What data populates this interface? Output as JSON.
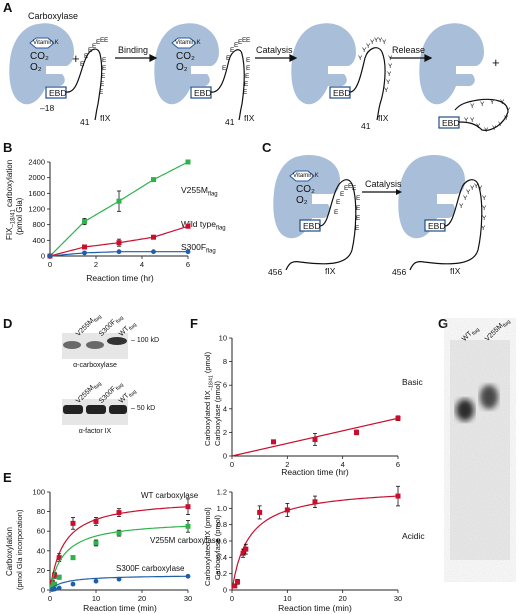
{
  "panels": {
    "A": "A",
    "B": "B",
    "C": "C",
    "D": "D",
    "E": "E",
    "F": "F",
    "G": "G"
  },
  "panelA": {
    "carboxylase": "Carboxylase",
    "vitk": "Vitamin K",
    "co2": "CO₂",
    "o2": "O₂",
    "plus": "+",
    "ebd": "EBD",
    "minus18": "–18",
    "n41": "41",
    "fix": "fIX",
    "binding": "Binding",
    "catalysis": "Catalysis",
    "release": "Release",
    "glu": "E",
    "gla": "Y"
  },
  "panelC": {
    "vitk": "Vitamin K",
    "co2": "CO₂",
    "o2": "O₂",
    "ebd": "EBD",
    "catalysis": "Catalysis",
    "n456": "456",
    "fix": "fIX"
  },
  "panelD": {
    "lanes": [
      "V255M",
      "S300F",
      "WT"
    ],
    "lane_sub": "flag",
    "kd100": "– 100 kD",
    "kd50": "– 50 kD",
    "blot1": "α-carboxylase",
    "blot2": "α-factor IX"
  },
  "panelG": {
    "lanes": [
      "WT",
      "V255M"
    ],
    "lane_sub": "flag",
    "basic": "Basic",
    "acidic": "Acidic"
  },
  "chart_data": [
    {
      "id": "B",
      "type": "line",
      "ylabel_main": "FIX",
      "ylabel_sub": "–18/41",
      "ylabel_rest": " carboxylation",
      "ylabel2": "(pmol Gla)",
      "xlabel": "Reaction time (hr)",
      "xlim": [
        0,
        6
      ],
      "ylim": [
        0,
        2400
      ],
      "xticks": [
        0,
        2,
        4,
        6
      ],
      "yticks": [
        0,
        400,
        800,
        1200,
        1600,
        2000,
        2400
      ],
      "series": [
        {
          "name": "V255M",
          "sub": "flag",
          "color": "#2db34a",
          "x": [
            0,
            1.5,
            3,
            4.5,
            6
          ],
          "y": [
            0,
            880,
            1400,
            1950,
            2400
          ],
          "err": [
            0,
            80,
            260,
            40,
            40
          ]
        },
        {
          "name": "Wild type",
          "sub": "flag",
          "color": "#c8102e",
          "x": [
            0,
            1.5,
            3,
            4.5,
            6
          ],
          "y": [
            0,
            230,
            340,
            480,
            760
          ],
          "err": [
            0,
            30,
            90,
            30,
            30
          ]
        },
        {
          "name": "S300F",
          "sub": "flag",
          "color": "#1f5fa8",
          "x": [
            0,
            1.5,
            3,
            4.5,
            6
          ],
          "y": [
            0,
            80,
            110,
            110,
            110
          ],
          "err": [
            0,
            10,
            10,
            10,
            10
          ]
        }
      ]
    },
    {
      "id": "F",
      "type": "scatter",
      "ylabel_top": "Carboxylated fIX",
      "ylabel_top_sub": "–18/41",
      "ylabel_top_rest": " (pmol)",
      "ylabel_bottom": "Carboxylase (pmol)",
      "xlabel": "Reaction time (hr)",
      "xlim": [
        0,
        6
      ],
      "ylim": [
        0,
        10
      ],
      "xticks": [
        0,
        2,
        4,
        6
      ],
      "yticks": [
        0,
        2,
        4,
        6,
        8,
        10
      ],
      "series": [
        {
          "color": "#c8102e",
          "x": [
            1.5,
            3,
            4.5,
            6
          ],
          "y": [
            1.2,
            1.4,
            2.0,
            3.2
          ],
          "err": [
            0.1,
            0.5,
            0.2,
            0.2
          ]
        }
      ]
    },
    {
      "id": "E1",
      "type": "line",
      "ylabel": "Carboxylation",
      "ylabel2": "(pmol Gla incorporation)",
      "xlabel": "Reaction time (min)",
      "xlim": [
        0,
        30
      ],
      "ylim": [
        0,
        100
      ],
      "xticks": [
        0,
        10,
        20,
        30
      ],
      "yticks": [
        0,
        20,
        40,
        60,
        80,
        100
      ],
      "series": [
        {
          "name": "WT carboxylase",
          "color": "#c8102e",
          "x": [
            0.5,
            1,
            2,
            5,
            10,
            15,
            30
          ],
          "y": [
            8,
            15,
            33,
            68,
            70,
            79,
            85
          ],
          "err": [
            2,
            3,
            4,
            6,
            4,
            4,
            8
          ]
        },
        {
          "name": "V255M carboxylase",
          "color": "#2db34a",
          "x": [
            0.5,
            1,
            2,
            5,
            10,
            15,
            30
          ],
          "y": [
            3,
            6,
            13,
            33,
            48,
            58,
            65
          ],
          "err": [
            1,
            1,
            2,
            2,
            3,
            3,
            6
          ]
        },
        {
          "name": "S300F carboxylase",
          "color": "#1f5fa8",
          "x": [
            0.5,
            1,
            2,
            5,
            10,
            15,
            30
          ],
          "y": [
            0.5,
            1,
            2,
            6,
            9,
            11,
            14
          ],
          "err": [
            0.3,
            0.3,
            0.5,
            0.8,
            0.8,
            0.8,
            1
          ]
        }
      ]
    },
    {
      "id": "E2",
      "type": "line",
      "ylabel_top": "Carboxylated fIX (pmol)",
      "ylabel_bottom": "Carboxylase (pmol)",
      "xlabel": "Reaction time (min)",
      "xlim": [
        0,
        30
      ],
      "ylim": [
        0,
        1.2
      ],
      "xticks": [
        0,
        10,
        20,
        30
      ],
      "yticks": [
        "0",
        "0.2",
        "0.4",
        "0.6",
        "0.8",
        "1.0",
        "1.2"
      ],
      "series": [
        {
          "color": "#c8102e",
          "x": [
            0.5,
            1,
            2,
            2.5,
            5,
            10,
            15,
            30
          ],
          "y": [
            0.05,
            0.1,
            0.45,
            0.5,
            0.95,
            0.98,
            1.08,
            1.15
          ],
          "err": [
            0.02,
            0.03,
            0.05,
            0.06,
            0.08,
            0.08,
            0.07,
            0.12
          ]
        }
      ]
    }
  ]
}
